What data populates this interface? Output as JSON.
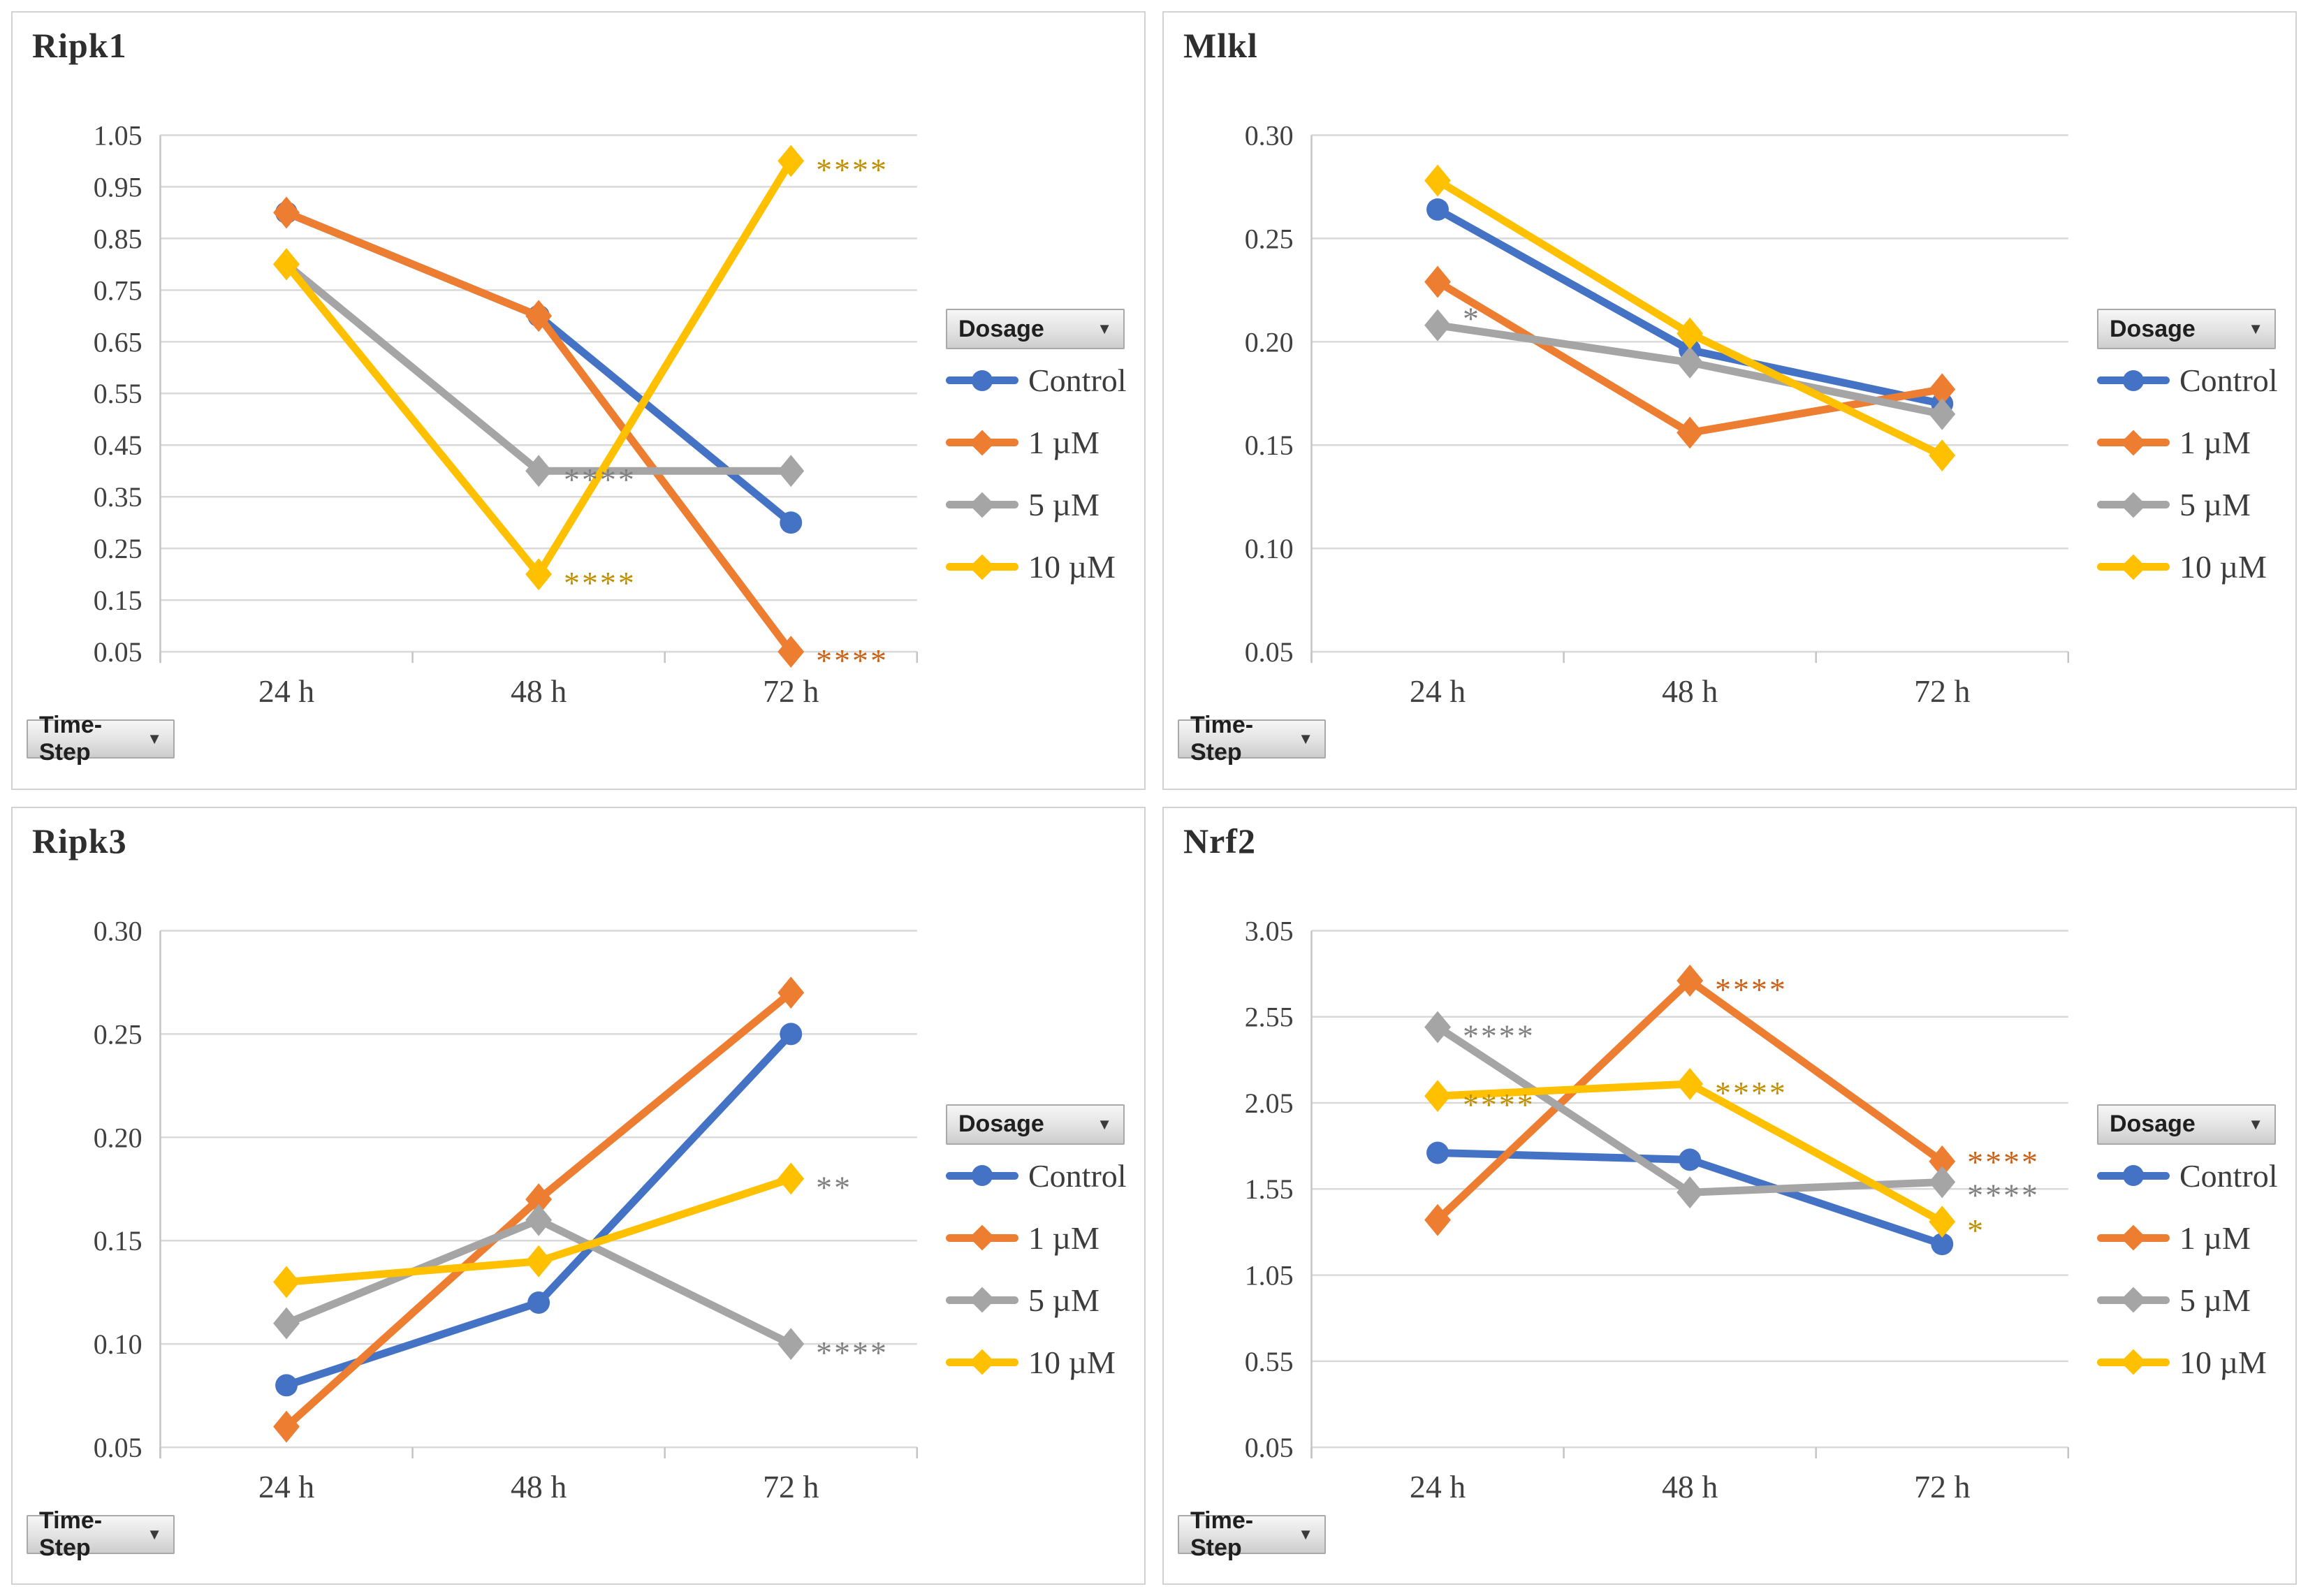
{
  "buttons": {
    "dosage_label": "Dosage",
    "timestep_label": "Time-Step"
  },
  "chart_data": [
    {
      "type": "line",
      "title": "Ripk1",
      "categories": [
        "24 h",
        "48 h",
        "72 h"
      ],
      "ylim": [
        0.05,
        1.05
      ],
      "yticks": [
        1.05,
        0.95,
        0.85,
        0.75,
        0.65,
        0.55,
        0.45,
        0.35,
        0.25,
        0.15,
        0.05
      ],
      "grid": true,
      "legend_position": "right",
      "series": [
        {
          "name": "Control",
          "color": "#4472C4",
          "marker": "circle",
          "values": [
            0.9,
            0.7,
            0.3
          ]
        },
        {
          "name": "1 µM",
          "color": "#ED7D31",
          "marker": "diamond",
          "values": [
            0.9,
            0.7,
            0.05
          ]
        },
        {
          "name": "5 µM",
          "color": "#A5A5A5",
          "marker": "diamond",
          "values": [
            0.8,
            0.4,
            0.4
          ]
        },
        {
          "name": "10 µM",
          "color": "#FFC000",
          "marker": "diamond",
          "values": [
            0.8,
            0.2,
            1.0
          ]
        }
      ],
      "annotations": [
        {
          "series": 2,
          "point": 1,
          "text": "****",
          "color": "#7F7F7F"
        },
        {
          "series": 3,
          "point": 1,
          "text": "****",
          "color": "#BF8F00"
        },
        {
          "series": 3,
          "point": 2,
          "text": "****",
          "color": "#BF8F00"
        },
        {
          "series": 1,
          "point": 2,
          "text": "****",
          "color": "#CB6015"
        }
      ]
    },
    {
      "type": "line",
      "title": "Mlkl",
      "categories": [
        "24 h",
        "48 h",
        "72 h"
      ],
      "ylim": [
        0.05,
        0.3
      ],
      "yticks": [
        0.3,
        0.25,
        0.2,
        0.15,
        0.1,
        0.05
      ],
      "grid": true,
      "legend_position": "right",
      "series": [
        {
          "name": "Control",
          "color": "#4472C4",
          "marker": "circle",
          "values": [
            0.264,
            0.196,
            0.17
          ]
        },
        {
          "name": "1 µM",
          "color": "#ED7D31",
          "marker": "diamond",
          "values": [
            0.229,
            0.156,
            0.177
          ]
        },
        {
          "name": "5 µM",
          "color": "#A5A5A5",
          "marker": "diamond",
          "values": [
            0.208,
            0.19,
            0.165
          ]
        },
        {
          "name": "10 µM",
          "color": "#FFC000",
          "marker": "diamond",
          "values": [
            0.278,
            0.204,
            0.145
          ]
        }
      ],
      "annotations": [
        {
          "series": 2,
          "point": 0,
          "text": "*",
          "color": "#7F7F7F",
          "dy": 6
        }
      ]
    },
    {
      "type": "line",
      "title": "Ripk3",
      "categories": [
        "24 h",
        "48 h",
        "72 h"
      ],
      "ylim": [
        0.05,
        0.3
      ],
      "yticks": [
        0.3,
        0.25,
        0.2,
        0.15,
        0.1,
        0.05
      ],
      "grid": true,
      "legend_position": "right",
      "series": [
        {
          "name": "Control",
          "color": "#4472C4",
          "marker": "circle",
          "values": [
            0.08,
            0.12,
            0.25
          ]
        },
        {
          "name": "1 µM",
          "color": "#ED7D31",
          "marker": "diamond",
          "values": [
            0.06,
            0.17,
            0.27
          ]
        },
        {
          "name": "5 µM",
          "color": "#A5A5A5",
          "marker": "diamond",
          "values": [
            0.11,
            0.16,
            0.1
          ]
        },
        {
          "name": "10 µM",
          "color": "#FFC000",
          "marker": "diamond",
          "values": [
            0.13,
            0.14,
            0.18
          ]
        }
      ],
      "annotations": [
        {
          "series": 3,
          "point": 2,
          "text": "**",
          "color": "#7F7F7F"
        },
        {
          "series": 2,
          "point": 2,
          "text": "****",
          "color": "#7F7F7F"
        }
      ]
    },
    {
      "type": "line",
      "title": "Nrf2",
      "categories": [
        "24 h",
        "48 h",
        "72 h"
      ],
      "ylim": [
        0.05,
        3.05
      ],
      "yticks": [
        3.05,
        2.55,
        2.05,
        1.55,
        1.05,
        0.55,
        0.05
      ],
      "grid": true,
      "legend_position": "right",
      "series": [
        {
          "name": "Control",
          "color": "#4472C4",
          "marker": "circle",
          "values": [
            1.76,
            1.72,
            1.23
          ]
        },
        {
          "name": "1 µM",
          "color": "#ED7D31",
          "marker": "diamond",
          "values": [
            1.37,
            2.76,
            1.71
          ]
        },
        {
          "name": "5 µM",
          "color": "#A5A5A5",
          "marker": "diamond",
          "values": [
            2.49,
            1.53,
            1.59
          ]
        },
        {
          "name": "10 µM",
          "color": "#FFC000",
          "marker": "diamond",
          "values": [
            2.09,
            2.16,
            1.36
          ]
        }
      ],
      "annotations": [
        {
          "series": 2,
          "point": 0,
          "text": "****",
          "color": "#7F7F7F"
        },
        {
          "series": 3,
          "point": 0,
          "text": "****",
          "color": "#BF8F00"
        },
        {
          "series": 1,
          "point": 1,
          "text": "****",
          "color": "#CB6015"
        },
        {
          "series": 3,
          "point": 1,
          "text": "****",
          "color": "#BF8F00"
        },
        {
          "series": 1,
          "point": 2,
          "text": "****",
          "color": "#CB6015",
          "dy": 16
        },
        {
          "series": 2,
          "point": 2,
          "text": "****",
          "color": "#7F7F7F",
          "dy": 34
        },
        {
          "series": 3,
          "point": 2,
          "text": "*",
          "color": "#BF8F00"
        }
      ]
    }
  ]
}
